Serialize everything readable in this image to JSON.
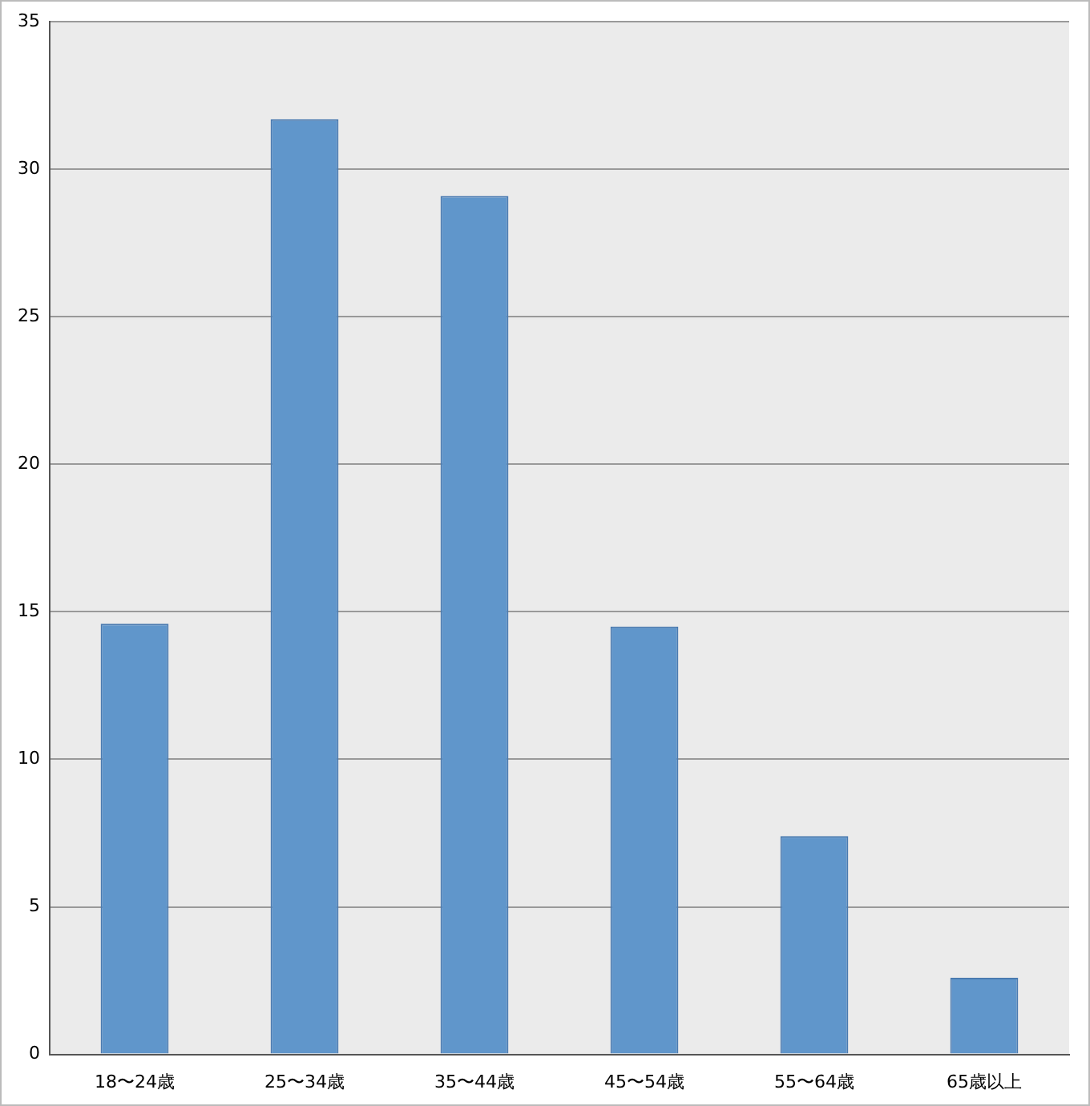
{
  "chart_data": {
    "type": "bar",
    "categories": [
      "18〜24歳",
      "25〜34歳",
      "35〜44歳",
      "45〜54歳",
      "55〜64歳",
      "65歳以上"
    ],
    "values": [
      14.6,
      31.7,
      29.1,
      14.5,
      7.4,
      2.6
    ],
    "color": "#6096cb",
    "ylim": [
      0,
      35
    ],
    "yticks": [
      0,
      5,
      10,
      15,
      20,
      25,
      30,
      35
    ],
    "grid": "y",
    "legend": false
  }
}
